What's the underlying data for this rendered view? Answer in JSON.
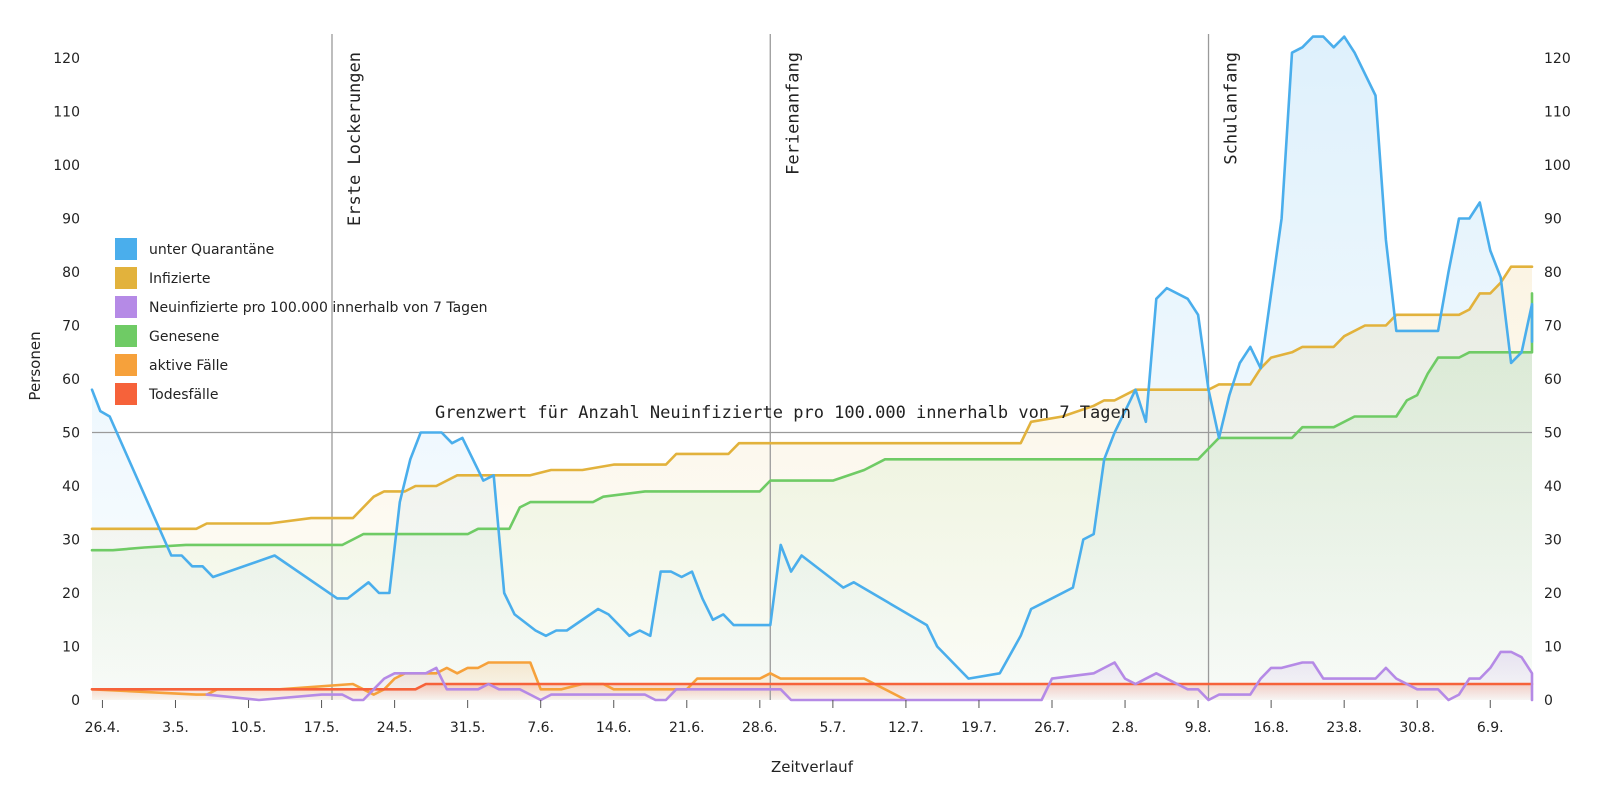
{
  "chart_data": {
    "type": "area",
    "xlabel": "Zeitverlauf",
    "ylabel": "Personen",
    "ylim": [
      0,
      122
    ],
    "yticks": [
      0,
      10,
      20,
      30,
      40,
      50,
      60,
      70,
      80,
      90,
      100,
      110,
      120
    ],
    "x_range_days": [
      -1,
      137
    ],
    "x_ticks": [
      {
        "day": 0,
        "label": "26.4."
      },
      {
        "day": 7,
        "label": "3.5."
      },
      {
        "day": 14,
        "label": "10.5."
      },
      {
        "day": 21,
        "label": "17.5."
      },
      {
        "day": 28,
        "label": "24.5."
      },
      {
        "day": 35,
        "label": "31.5."
      },
      {
        "day": 42,
        "label": "7.6."
      },
      {
        "day": 49,
        "label": "14.6."
      },
      {
        "day": 56,
        "label": "21.6."
      },
      {
        "day": 63,
        "label": "28.6."
      },
      {
        "day": 70,
        "label": "5.7."
      },
      {
        "day": 77,
        "label": "12.7."
      },
      {
        "day": 84,
        "label": "19.7."
      },
      {
        "day": 91,
        "label": "26.7."
      },
      {
        "day": 98,
        "label": "2.8."
      },
      {
        "day": 105,
        "label": "9.8."
      },
      {
        "day": 112,
        "label": "16.8."
      },
      {
        "day": 119,
        "label": "23.8."
      },
      {
        "day": 126,
        "label": "30.8."
      },
      {
        "day": 133,
        "label": "6.9."
      }
    ],
    "annotations": [
      {
        "day": 22,
        "label": "Erste Lockerungen"
      },
      {
        "day": 64,
        "label": "Ferienanfang"
      },
      {
        "day": 106,
        "label": "Schulanfang"
      }
    ],
    "threshold": {
      "y": 50,
      "label": "Grenzwert für Anzahl Neuinfizierte pro 100.000 innerhalb von 7 Tagen"
    },
    "legend_position": "left",
    "series": [
      {
        "name": "unter Quarantäne",
        "color": "#4aaeec",
        "points": [
          [
            -1,
            58
          ],
          [
            -0.2,
            54
          ],
          [
            0.7,
            53
          ],
          [
            6.6,
            27
          ],
          [
            7.6,
            27
          ],
          [
            8.6,
            25
          ],
          [
            9.6,
            25
          ],
          [
            10.6,
            23
          ],
          [
            16.5,
            27
          ],
          [
            22.5,
            19
          ],
          [
            23.5,
            19
          ],
          [
            25.5,
            22
          ],
          [
            26.5,
            20
          ],
          [
            27.5,
            20
          ],
          [
            28.5,
            37
          ],
          [
            29.5,
            45
          ],
          [
            30.5,
            50
          ],
          [
            32.5,
            50
          ],
          [
            33.5,
            48
          ],
          [
            34.5,
            49
          ],
          [
            36.5,
            41
          ],
          [
            37.5,
            42
          ],
          [
            38.5,
            20
          ],
          [
            39.5,
            16
          ],
          [
            41.5,
            13
          ],
          [
            42.5,
            12
          ],
          [
            43.5,
            13
          ],
          [
            44.5,
            13
          ],
          [
            47.5,
            17
          ],
          [
            48.5,
            16
          ],
          [
            50.5,
            12
          ],
          [
            51.5,
            13
          ],
          [
            52.5,
            12
          ],
          [
            53.5,
            24
          ],
          [
            54.5,
            24
          ],
          [
            55.5,
            23
          ],
          [
            56.5,
            24
          ],
          [
            57.5,
            19
          ],
          [
            58.5,
            15
          ],
          [
            59.5,
            16
          ],
          [
            60.5,
            14
          ],
          [
            64,
            14
          ],
          [
            65,
            29
          ],
          [
            66,
            24
          ],
          [
            67,
            27
          ],
          [
            71,
            21
          ],
          [
            72,
            22
          ],
          [
            79,
            14
          ],
          [
            80,
            10
          ],
          [
            83,
            4
          ],
          [
            86,
            5
          ],
          [
            88,
            12
          ],
          [
            89,
            17
          ],
          [
            90,
            18
          ],
          [
            93,
            21
          ],
          [
            94,
            30
          ],
          [
            95,
            31
          ],
          [
            96,
            45
          ],
          [
            97,
            50
          ],
          [
            99,
            58
          ],
          [
            100,
            52
          ],
          [
            101,
            75
          ],
          [
            102,
            77
          ],
          [
            104,
            75
          ],
          [
            105,
            72
          ],
          [
            106,
            58
          ],
          [
            107,
            49
          ],
          [
            108,
            57
          ],
          [
            109,
            63
          ],
          [
            110,
            66
          ],
          [
            111,
            62
          ],
          [
            113,
            90
          ],
          [
            114,
            121
          ],
          [
            115,
            122
          ],
          [
            116,
            124
          ],
          [
            117,
            124
          ],
          [
            118,
            122
          ],
          [
            119,
            124
          ],
          [
            120,
            121
          ],
          [
            122,
            113
          ],
          [
            123,
            86
          ],
          [
            124,
            69
          ],
          [
            128,
            69
          ],
          [
            129,
            80
          ],
          [
            130,
            90
          ],
          [
            131,
            90
          ],
          [
            132,
            93
          ],
          [
            133,
            84
          ],
          [
            134,
            79
          ],
          [
            135,
            63
          ],
          [
            136,
            65
          ],
          [
            137,
            74
          ],
          [
            138,
            67
          ],
          [
            139,
            68
          ]
        ]
      },
      {
        "name": "Infizierte",
        "color": "#e2b23c",
        "points": [
          [
            -1,
            32
          ],
          [
            9,
            32
          ],
          [
            10,
            33
          ],
          [
            16,
            33
          ],
          [
            20,
            34
          ],
          [
            23,
            34
          ],
          [
            24,
            34
          ],
          [
            25,
            36
          ],
          [
            26,
            38
          ],
          [
            27,
            39
          ],
          [
            29,
            39
          ],
          [
            30,
            40
          ],
          [
            32,
            40
          ],
          [
            33,
            41
          ],
          [
            34,
            42
          ],
          [
            40,
            42
          ],
          [
            41,
            42
          ],
          [
            43,
            43
          ],
          [
            46,
            43
          ],
          [
            49,
            44
          ],
          [
            54,
            44
          ],
          [
            55,
            46
          ],
          [
            60,
            46
          ],
          [
            61,
            48
          ],
          [
            88,
            48
          ],
          [
            89,
            52
          ],
          [
            92,
            53
          ],
          [
            95,
            55
          ],
          [
            96,
            56
          ],
          [
            97,
            56
          ],
          [
            99,
            58
          ],
          [
            106,
            58
          ],
          [
            107,
            59
          ],
          [
            110,
            59
          ],
          [
            111,
            62
          ],
          [
            112,
            64
          ],
          [
            114,
            65
          ],
          [
            115,
            66
          ],
          [
            118,
            66
          ],
          [
            119,
            68
          ],
          [
            121,
            70
          ],
          [
            123,
            70
          ],
          [
            124,
            72
          ],
          [
            130,
            72
          ],
          [
            131,
            73
          ],
          [
            132,
            76
          ],
          [
            133,
            76
          ],
          [
            134,
            78
          ],
          [
            135,
            81
          ],
          [
            139,
            81
          ]
        ]
      },
      {
        "name": "Neuinfizierte pro 100.000 innerhalb von 7 Tagen",
        "color": "#b58ae6",
        "points": [
          [
            10,
            1
          ],
          [
            15,
            0
          ],
          [
            21,
            1
          ],
          [
            23,
            1
          ],
          [
            24,
            0
          ],
          [
            25,
            0
          ],
          [
            26,
            2
          ],
          [
            27,
            4
          ],
          [
            28,
            5
          ],
          [
            31,
            5
          ],
          [
            32,
            6
          ],
          [
            33,
            2
          ],
          [
            36,
            2
          ],
          [
            37,
            3
          ],
          [
            38,
            2
          ],
          [
            40,
            2
          ],
          [
            41,
            1
          ],
          [
            42,
            0
          ],
          [
            43,
            1
          ],
          [
            44,
            1
          ],
          [
            45,
            1
          ],
          [
            48,
            1
          ],
          [
            52,
            1
          ],
          [
            53,
            0
          ],
          [
            54,
            0
          ],
          [
            55,
            2
          ],
          [
            56,
            2
          ],
          [
            65,
            2
          ],
          [
            66,
            0
          ],
          [
            71,
            0
          ],
          [
            90,
            0
          ],
          [
            91,
            4
          ],
          [
            95,
            5
          ],
          [
            96,
            6
          ],
          [
            97,
            7
          ],
          [
            98,
            4
          ],
          [
            99,
            3
          ],
          [
            101,
            5
          ],
          [
            103,
            3
          ],
          [
            104,
            2
          ],
          [
            105,
            2
          ],
          [
            106,
            0
          ],
          [
            107,
            1
          ],
          [
            110,
            1
          ],
          [
            111,
            4
          ],
          [
            112,
            6
          ],
          [
            113,
            6
          ],
          [
            115,
            7
          ],
          [
            116,
            7
          ],
          [
            117,
            4
          ],
          [
            121,
            4
          ],
          [
            122,
            4
          ],
          [
            123,
            6
          ],
          [
            124,
            4
          ],
          [
            126,
            2
          ],
          [
            128,
            2
          ],
          [
            129,
            0
          ],
          [
            130,
            1
          ],
          [
            131,
            4
          ],
          [
            132,
            4
          ],
          [
            133,
            6
          ],
          [
            134,
            9
          ],
          [
            135,
            9
          ],
          [
            136,
            8
          ],
          [
            137,
            5
          ],
          [
            138,
            5
          ],
          [
            139,
            3
          ],
          [
            140,
            0
          ],
          [
            141,
            0
          ]
        ]
      },
      {
        "name": "Genesene",
        "color": "#6fcb65",
        "points": [
          [
            -1,
            28
          ],
          [
            1,
            28
          ],
          [
            4,
            28.5
          ],
          [
            8,
            29
          ],
          [
            9,
            29
          ],
          [
            23,
            29
          ],
          [
            24,
            30
          ],
          [
            25,
            31
          ],
          [
            35,
            31
          ],
          [
            36,
            32
          ],
          [
            39,
            32
          ],
          [
            40,
            36
          ],
          [
            41,
            37
          ],
          [
            47,
            37
          ],
          [
            48,
            38
          ],
          [
            52,
            39
          ],
          [
            60,
            39
          ],
          [
            61,
            39
          ],
          [
            63,
            39
          ],
          [
            64,
            41
          ],
          [
            70,
            41
          ],
          [
            73,
            43
          ],
          [
            75,
            45
          ],
          [
            96,
            45
          ],
          [
            105,
            45
          ],
          [
            106,
            47
          ],
          [
            107,
            49
          ],
          [
            114,
            49
          ],
          [
            115,
            51
          ],
          [
            118,
            51
          ],
          [
            120,
            53
          ],
          [
            124,
            53
          ],
          [
            125,
            56
          ],
          [
            126,
            57
          ],
          [
            127,
            61
          ],
          [
            128,
            64
          ],
          [
            130,
            64
          ],
          [
            131,
            65
          ],
          [
            137,
            65
          ],
          [
            138,
            68
          ],
          [
            139,
            73
          ],
          [
            140,
            75
          ],
          [
            141,
            75
          ],
          [
            142,
            76
          ],
          [
            143,
            76
          ]
        ]
      },
      {
        "name": "aktive Fälle",
        "color": "#f6a13b",
        "points": [
          [
            -1,
            2
          ],
          [
            9,
            1
          ],
          [
            10,
            1
          ],
          [
            11,
            2
          ],
          [
            17,
            2
          ],
          [
            24,
            3
          ],
          [
            25,
            2
          ],
          [
            26,
            1
          ],
          [
            27,
            2
          ],
          [
            28,
            4
          ],
          [
            29,
            5
          ],
          [
            32,
            5
          ],
          [
            33,
            6
          ],
          [
            34,
            5
          ],
          [
            35,
            6
          ],
          [
            36,
            6
          ],
          [
            37,
            7
          ],
          [
            41,
            7
          ],
          [
            42,
            2
          ],
          [
            43,
            2
          ],
          [
            44,
            2
          ],
          [
            46,
            3
          ],
          [
            48,
            3
          ],
          [
            49,
            2
          ],
          [
            56,
            2
          ],
          [
            57,
            4
          ],
          [
            63,
            4
          ],
          [
            64,
            5
          ],
          [
            65,
            4
          ],
          [
            73,
            4
          ],
          [
            77,
            0
          ]
        ]
      },
      {
        "name": "Todesfälle",
        "color": "#f6623a",
        "points": [
          [
            -1,
            2
          ],
          [
            30,
            2
          ],
          [
            31,
            3
          ],
          [
            140,
            3
          ]
        ]
      }
    ]
  }
}
